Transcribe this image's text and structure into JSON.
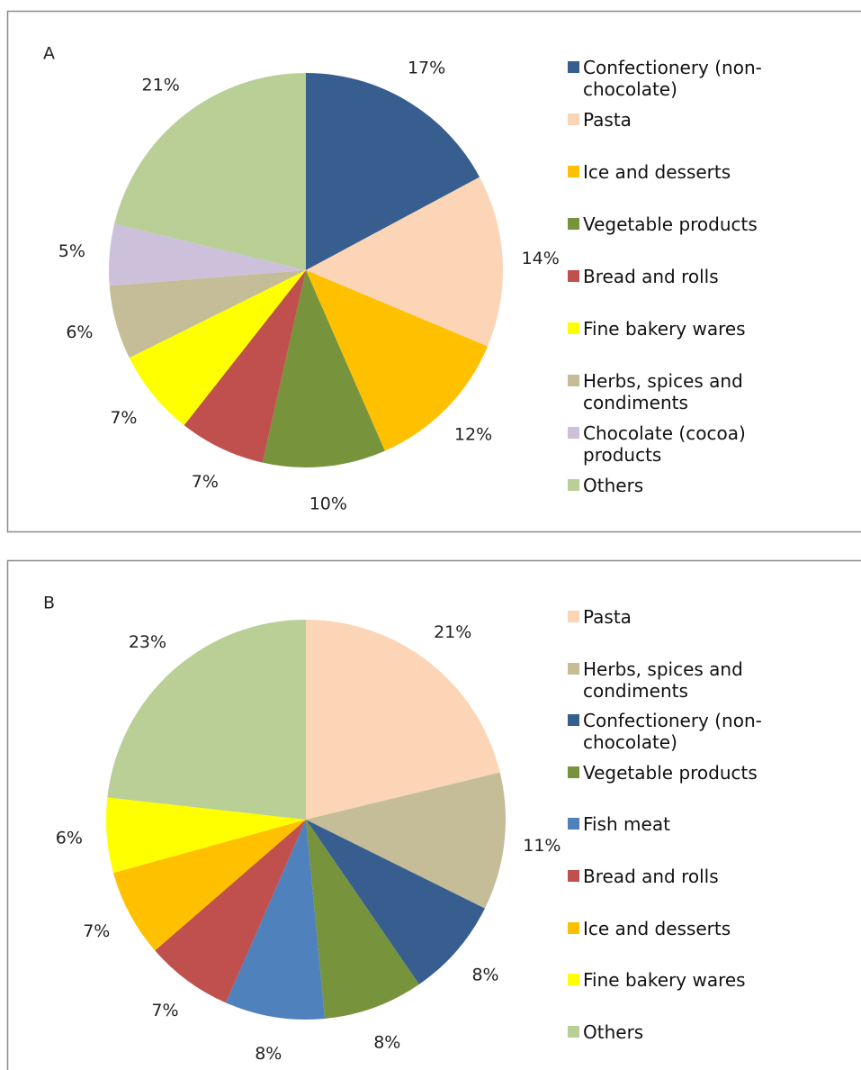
{
  "chart_data": [
    {
      "type": "pie",
      "title": "A",
      "categories": [
        "Confectionery (non-chocolate)",
        "Pasta",
        "Ice and desserts",
        "Vegetable products",
        "Bread and rolls",
        "Fine bakery wares",
        "Herbs, spices and condiments",
        "Chocolate (cocoa) products",
        "Others"
      ],
      "values": [
        17,
        14,
        12,
        10,
        7,
        7,
        6,
        5,
        21
      ],
      "value_labels": [
        "17%",
        "14%",
        "12%",
        "10%",
        "7%",
        "7%",
        "6%",
        "5%",
        "21%"
      ],
      "colors": [
        "#375e8f",
        "#fbd5b5",
        "#ffc000",
        "#77933c",
        "#c0504d",
        "#ffff00",
        "#c4bd97",
        "#ccc0da",
        "#b9cf96"
      ],
      "legend": "right"
    },
    {
      "type": "pie",
      "title": "B",
      "categories": [
        "Pasta",
        "Herbs, spices and condiments",
        "Confectionery (non-chocolate)",
        "Vegetable products",
        "Fish meat",
        "Bread and rolls",
        "Ice and desserts",
        "Fine bakery wares",
        "Others"
      ],
      "values": [
        21,
        11,
        8,
        8,
        8,
        7,
        7,
        6,
        23
      ],
      "value_labels": [
        "21%",
        "11%",
        "8%",
        "8%",
        "8%",
        "7%",
        "7%",
        "6%",
        "23%"
      ],
      "colors": [
        "#fbd5b5",
        "#c4bd97",
        "#375e8f",
        "#77933c",
        "#4f81bd",
        "#c0504d",
        "#ffc000",
        "#ffff00",
        "#b9cf96"
      ],
      "legend": "right"
    }
  ]
}
